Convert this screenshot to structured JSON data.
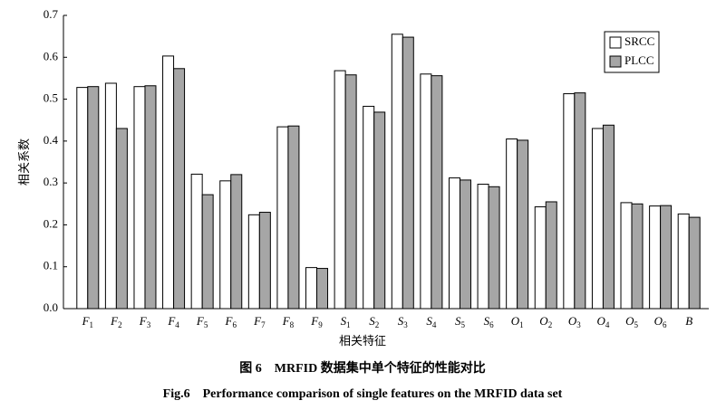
{
  "chart_data": {
    "type": "bar",
    "x_label": "相关特征",
    "y_label": "相关系数",
    "caption_cn": "图 6　MRFID 数据集中单个特征的性能对比",
    "caption_en": "Fig.6　Performance comparison of single features on the MRFID data set",
    "categories": [
      "F1",
      "F2",
      "F3",
      "F4",
      "F5",
      "F6",
      "F7",
      "F8",
      "F9",
      "S1",
      "S2",
      "S3",
      "S4",
      "S5",
      "S6",
      "O1",
      "O2",
      "O3",
      "O4",
      "O5",
      "O6",
      "B"
    ],
    "series": [
      {
        "name": "SRCC",
        "color": "#ffffff",
        "values": [
          0.528,
          0.538,
          0.53,
          0.603,
          0.321,
          0.305,
          0.224,
          0.434,
          0.098,
          0.568,
          0.483,
          0.655,
          0.56,
          0.312,
          0.297,
          0.405,
          0.243,
          0.513,
          0.43,
          0.253,
          0.245,
          0.226
        ]
      },
      {
        "name": "PLCC",
        "color": "#a6a6a6",
        "values": [
          0.53,
          0.43,
          0.532,
          0.573,
          0.272,
          0.32,
          0.23,
          0.436,
          0.096,
          0.558,
          0.469,
          0.648,
          0.556,
          0.307,
          0.291,
          0.402,
          0.255,
          0.515,
          0.438,
          0.25,
          0.246,
          0.218
        ]
      }
    ],
    "ylim": [
      0,
      0.7
    ],
    "yticks": [
      {
        "value": 0,
        "label": "0.0"
      },
      0.1,
      0.2,
      0.3,
      0.4,
      0.5,
      0.6,
      0.7
    ],
    "legend": "upper right",
    "grid": false
  }
}
